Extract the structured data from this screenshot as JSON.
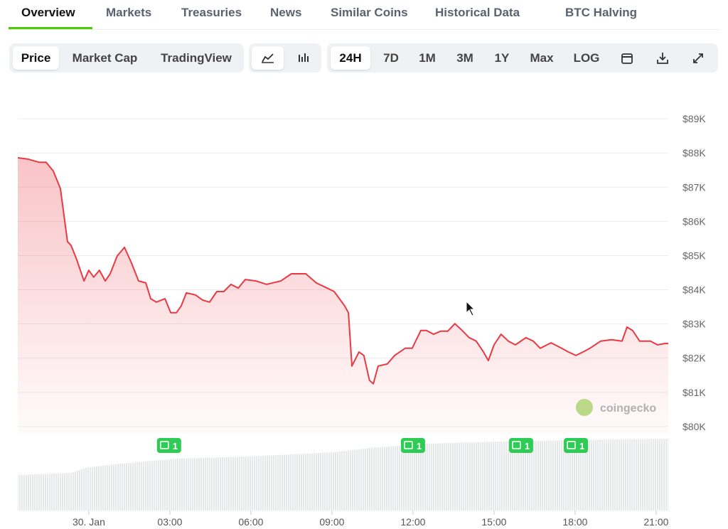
{
  "tabs": [
    "Overview",
    "Markets",
    "Treasuries",
    "News",
    "Similar Coins",
    "Historical Data",
    "BTC Halving"
  ],
  "chart_modes": [
    "Price",
    "Market Cap",
    "TradingView"
  ],
  "ranges": [
    "24H",
    "7D",
    "1M",
    "3M",
    "1Y",
    "Max",
    "LOG"
  ],
  "watermark": "coingecko",
  "chart_data": {
    "type": "line",
    "color": "#ea3943",
    "x": [
      -2.63,
      -2.24,
      -1.84,
      -1.58,
      -1.32,
      -1.05,
      -0.79,
      -0.66,
      -0.45,
      -0.18,
      0,
      0.18,
      0.39,
      0.61,
      0.79,
      1.05,
      1.32,
      1.58,
      1.84,
      2.11,
      2.29,
      2.5,
      2.82,
      3.03,
      3.24,
      3.42,
      3.61,
      3.95,
      4.21,
      4.47,
      4.74,
      5.0,
      5.26,
      5.53,
      5.79,
      6.18,
      6.58,
      7.11,
      7.5,
      8.03,
      8.42,
      8.82,
      9.08,
      9.47,
      9.61,
      9.74,
      10.0,
      10.18,
      10.39,
      10.53,
      10.71,
      11.05,
      11.32,
      11.71,
      11.97,
      12.29,
      12.5,
      12.76,
      13.03,
      13.29,
      13.55,
      13.82,
      14.08,
      14.34,
      14.61,
      14.79,
      15.0,
      15.26,
      15.53,
      15.79,
      16.18,
      16.45,
      16.71,
      17.11,
      17.5,
      17.76,
      18.03,
      18.29,
      18.55,
      18.95,
      19.34,
      19.74,
      19.92,
      20.13,
      20.39,
      20.79,
      21.05,
      21.32,
      21.45
    ],
    "values": [
      87860,
      87820,
      87730,
      87730,
      87480,
      86960,
      85410,
      85300,
      84890,
      84260,
      84570,
      84370,
      84570,
      84260,
      84470,
      84990,
      85240,
      84780,
      84260,
      84200,
      83740,
      83640,
      83740,
      83330,
      83330,
      83530,
      83910,
      83850,
      83700,
      83640,
      83950,
      83950,
      84160,
      84050,
      84300,
      84260,
      84160,
      84260,
      84470,
      84470,
      84200,
      84050,
      83950,
      83530,
      83330,
      81770,
      82180,
      82080,
      81350,
      81250,
      81770,
      81830,
      82080,
      82290,
      82290,
      82810,
      82810,
      82700,
      82790,
      82790,
      83010,
      82810,
      82600,
      82500,
      82180,
      81930,
      82390,
      82700,
      82500,
      82390,
      82600,
      82500,
      82290,
      82450,
      82290,
      82180,
      82080,
      82180,
      82290,
      82500,
      82540,
      82500,
      82910,
      82810,
      82500,
      82500,
      82390,
      82430,
      82430
    ],
    "xlim": [
      -2.63,
      21.45
    ],
    "ylim": [
      79790,
      89980
    ],
    "xticks": [
      {
        "value": 0,
        "label": "30. Jan"
      },
      {
        "value": 3,
        "label": "03:00"
      },
      {
        "value": 6,
        "label": "06:00"
      },
      {
        "value": 9,
        "label": "09:00"
      },
      {
        "value": 12,
        "label": "12:00"
      },
      {
        "value": 15,
        "label": "15:00"
      },
      {
        "value": 18,
        "label": "18:00"
      },
      {
        "value": 21,
        "label": "21:00"
      }
    ],
    "yticks": [
      {
        "value": 80000,
        "label": "$80K"
      },
      {
        "value": 81000,
        "label": "$81K"
      },
      {
        "value": 82000,
        "label": "$82K"
      },
      {
        "value": 83000,
        "label": "$83K"
      },
      {
        "value": 84000,
        "label": "$84K"
      },
      {
        "value": 85000,
        "label": "$85K"
      },
      {
        "value": 86000,
        "label": "$86K"
      },
      {
        "value": 87000,
        "label": "$87K"
      },
      {
        "value": 88000,
        "label": "$88K"
      },
      {
        "value": 89000,
        "label": "$89K"
      }
    ],
    "grid": true,
    "annotations": [
      {
        "x": 2.97,
        "label": "1"
      },
      {
        "x": 12.0,
        "label": "1"
      },
      {
        "x": 16.0,
        "label": "1"
      },
      {
        "x": 18.03,
        "label": "1"
      }
    ]
  }
}
